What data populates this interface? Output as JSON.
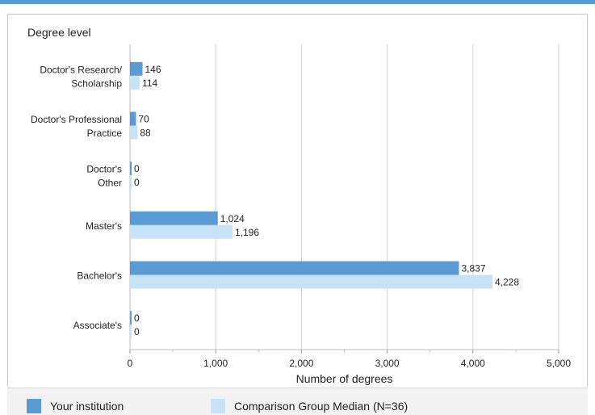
{
  "colors": {
    "accent_bar": "#5b9bd5",
    "series_1": "#5b9bd5",
    "series_2": "#c6e2f7",
    "grid": "#d0d0d0",
    "legend_bg": "#f2f2f2"
  },
  "chart_data": {
    "type": "bar",
    "orientation": "horizontal",
    "category_axis_title": "Degree level",
    "categories": [
      [
        "Doctor's Research/",
        "Scholarship"
      ],
      [
        "Doctor's Professional",
        "Practice"
      ],
      [
        "Doctor's",
        "Other"
      ],
      [
        "Master's"
      ],
      [
        "Bachelor's"
      ],
      [
        "Associate's"
      ]
    ],
    "series": [
      {
        "name": "Your institution",
        "values": [
          146,
          70,
          0,
          1024,
          3837,
          0
        ],
        "labels": [
          "146",
          "70",
          "0",
          "1,024",
          "3,837",
          "0"
        ]
      },
      {
        "name": "Comparison Group Median (N=36)",
        "values": [
          114,
          88,
          0,
          1196,
          4228,
          0
        ],
        "labels": [
          "114",
          "88",
          "0",
          "1,196",
          "4,228",
          "0"
        ]
      }
    ],
    "xlabel": "Number of degrees",
    "xlim": [
      0,
      5000
    ],
    "xticks": [
      0,
      1000,
      2000,
      3000,
      4000,
      5000
    ],
    "xtick_labels": [
      "0",
      "1,000",
      "2,000",
      "3,000",
      "4,000",
      "5,000"
    ],
    "grid": true,
    "legend_position": "bottom"
  }
}
